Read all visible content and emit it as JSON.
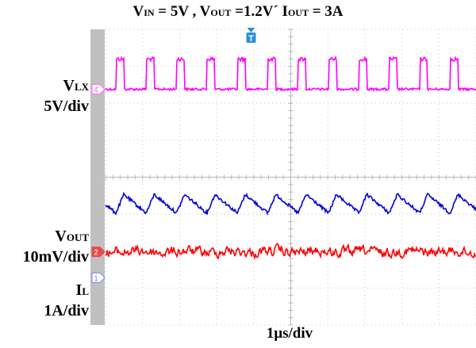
{
  "title": {
    "vin": {
      "main": "V",
      "sub": "IN",
      "rest": " = 5V , "
    },
    "vout": {
      "main": "V",
      "sub": "OUT",
      "rest": " =1.2Vˊ  "
    },
    "iout": {
      "main": "I",
      "sub": "OUT",
      "rest": " = 3A"
    }
  },
  "channels": [
    {
      "id": "vlx",
      "name_main": "V",
      "name_sub": "LX",
      "scale": "5V/div",
      "marker": "4",
      "marker_color": "#ff66ff"
    },
    {
      "id": "vout",
      "name_main": "V",
      "name_sub": "OUT",
      "scale": "10mV/div",
      "marker": "2",
      "marker_color": "#e84848"
    },
    {
      "id": "il",
      "name_main": "I",
      "name_sub": "L",
      "scale": "1A/div",
      "marker": "1",
      "marker_color": "#8080ff"
    }
  ],
  "trigger_marker": "T",
  "xlabel": "1μs/div",
  "colors": {
    "vlx": "#ff00ff",
    "il": "#0000dd",
    "vout": "#ff0000",
    "grid": "#c8c8c8",
    "trigger": "#2a8fd8",
    "strip": "#c0c0c0"
  },
  "chart_data": {
    "type": "line",
    "title": "VIN = 5V , VOUT =1.2V , IOUT = 3A",
    "xlabel": "1μs/div",
    "grid": true,
    "divisions": {
      "x": 10,
      "y": 8
    },
    "series": [
      {
        "name": "VLX",
        "scale": "5V/div",
        "color": "#ff00ff",
        "description": "square wave switching node",
        "period_div": 0.82,
        "duty": 0.26,
        "low_div": 1.62,
        "high_div": 2.05
      },
      {
        "name": "IL",
        "scale": "1A/div",
        "color": "#0000dd",
        "description": "triangular inductor current ripple",
        "period_div": 0.82,
        "center_div": 4.72,
        "ripple_div": 0.36
      },
      {
        "name": "VOUT",
        "scale": "10mV/div",
        "color": "#ff0000",
        "description": "output voltage ripple with noise",
        "center_div": 6.02,
        "ripple_div": 0.16
      }
    ]
  }
}
